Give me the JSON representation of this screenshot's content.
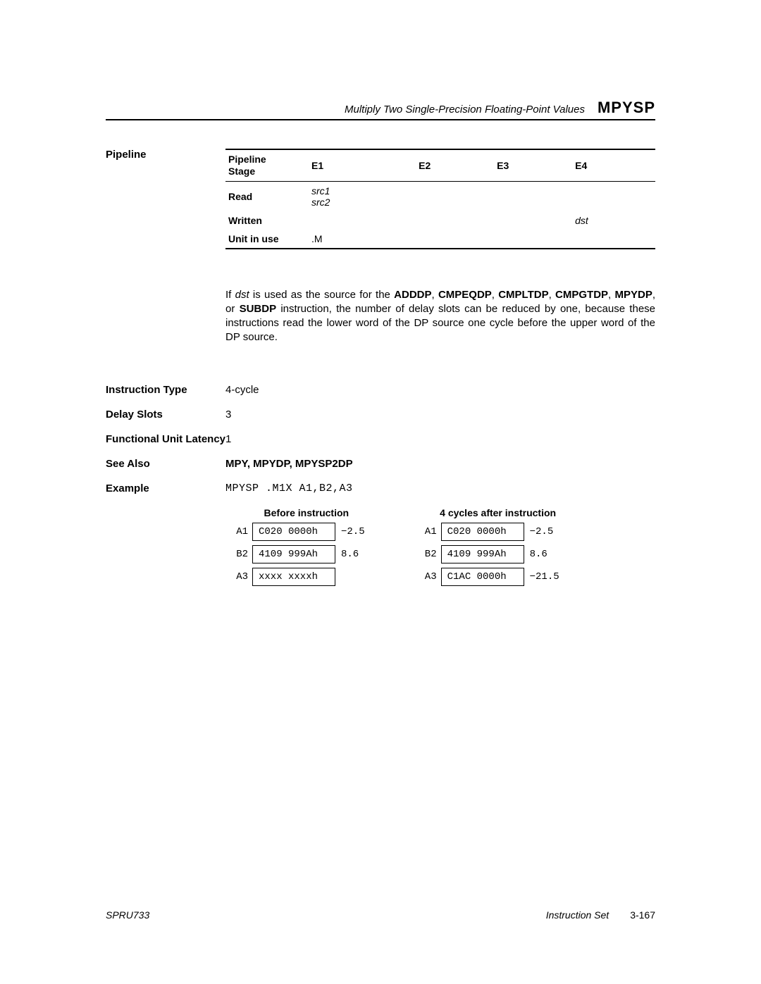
{
  "header": {
    "subtitle": "Multiply Two Single-Precision Floating-Point Values",
    "mnemonic": "MPYSP"
  },
  "pipeline": {
    "section_label": "Pipeline",
    "columns": [
      "Pipeline\nStage",
      "E1",
      "E2",
      "E3",
      "E4"
    ],
    "rows": [
      {
        "label": "Read",
        "e1": "src1\nsrc2",
        "e2": "",
        "e3": "",
        "e4": "",
        "italic_cells": true
      },
      {
        "label": "Written",
        "e1": "",
        "e2": "",
        "e3": "",
        "e4": "dst",
        "italic_cells": true
      },
      {
        "label": "Unit in use",
        "e1": ".M",
        "e2": "",
        "e3": "",
        "e4": "",
        "italic_cells": false
      }
    ]
  },
  "paragraph": {
    "pre": "If ",
    "dst": "dst",
    "mid1": " is used as the source for the ",
    "b1": "ADDDP",
    "c1": ", ",
    "b2": "CMPEQDP",
    "c2": ", ",
    "b3": "CMPLTDP",
    "c3": ", ",
    "b4": "CMPGTDP",
    "c4": ", ",
    "b5": "MPYDP",
    "c5": ", or ",
    "b6": "SUBDP",
    "rest": " instruction, the number of delay slots can be reduced by one, because these instructions read the lower word of the DP source one cycle before the upper word of the DP source."
  },
  "specs": {
    "instruction_type": {
      "label": "Instruction Type",
      "value": "4-cycle"
    },
    "delay_slots": {
      "label": "Delay Slots",
      "value": "3"
    },
    "func_unit_latency": {
      "label": "Functional Unit Latency",
      "value": "1"
    },
    "see_also": {
      "label": "See Also",
      "value": "MPY, MPYDP, MPYSP2DP"
    },
    "example": {
      "label": "Example",
      "value": "MPYSP .M1X A1,B2,A3"
    }
  },
  "example_tables": {
    "before": {
      "title": "Before instruction",
      "rows": [
        {
          "reg": "A1",
          "hex": "C020 0000h",
          "val": "−2.5"
        },
        {
          "reg": "B2",
          "hex": "4109 999Ah",
          "val": "8.6"
        },
        {
          "reg": "A3",
          "hex": "xxxx xxxxh",
          "val": ""
        }
      ]
    },
    "after": {
      "title": "4 cycles after instruction",
      "rows": [
        {
          "reg": "A1",
          "hex": "C020 0000h",
          "val": "−2.5"
        },
        {
          "reg": "B2",
          "hex": "4109 999Ah",
          "val": "8.6"
        },
        {
          "reg": "A3",
          "hex": "C1AC 0000h",
          "val": "−21.5"
        }
      ]
    }
  },
  "footer": {
    "doc": "SPRU733",
    "set": "Instruction Set",
    "page": "3-167"
  }
}
